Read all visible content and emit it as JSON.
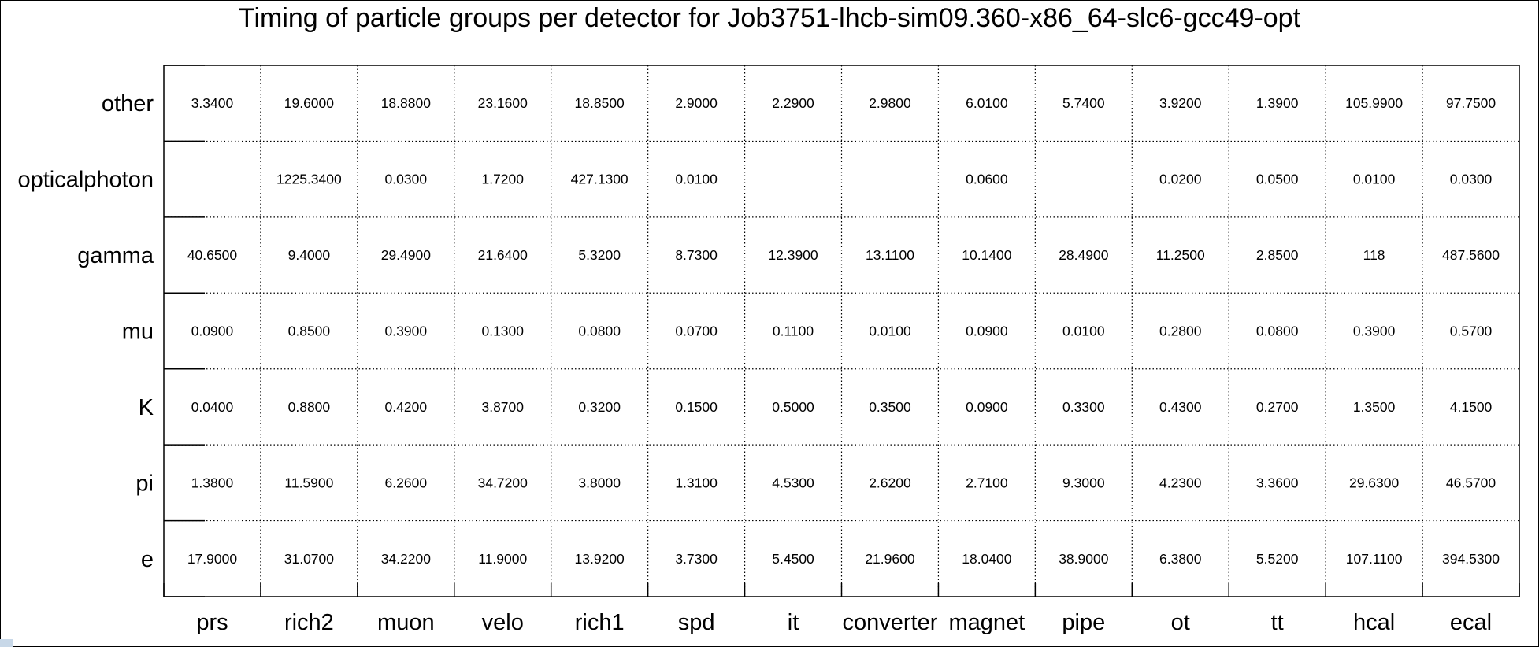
{
  "chart_data": {
    "type": "table",
    "title": "Timing of particle groups per detector for Job3751-lhcb-sim09.360-x86_64-slc6-gcc49-opt",
    "columns": [
      "prs",
      "rich2",
      "muon",
      "velo",
      "rich1",
      "spd",
      "it",
      "converter",
      "magnet",
      "pipe",
      "ot",
      "tt",
      "hcal",
      "ecal"
    ],
    "rows": [
      "other",
      "opticalphoton",
      "gamma",
      "mu",
      "K",
      "pi",
      "e"
    ],
    "cells": [
      [
        "3.3400",
        "19.6000",
        "18.8800",
        "23.1600",
        "18.8500",
        "2.9000",
        "2.2900",
        "2.9800",
        "6.0100",
        "5.7400",
        "3.9200",
        "1.3900",
        "105.9900",
        "97.7500"
      ],
      [
        "",
        "1225.3400",
        "0.0300",
        "1.7200",
        "427.1300",
        "0.0100",
        "",
        "",
        "0.0600",
        "",
        "0.0200",
        "0.0500",
        "0.0100",
        "0.0300"
      ],
      [
        "40.6500",
        "9.4000",
        "29.4900",
        "21.6400",
        "5.3200",
        "8.7300",
        "12.3900",
        "13.1100",
        "10.1400",
        "28.4900",
        "11.2500",
        "2.8500",
        "118",
        "487.5600"
      ],
      [
        "0.0900",
        "0.8500",
        "0.3900",
        "0.1300",
        "0.0800",
        "0.0700",
        "0.1100",
        "0.0100",
        "0.0900",
        "0.0100",
        "0.2800",
        "0.0800",
        "0.3900",
        "0.5700"
      ],
      [
        "0.0400",
        "0.8800",
        "0.4200",
        "3.8700",
        "0.3200",
        "0.1500",
        "0.5000",
        "0.3500",
        "0.0900",
        "0.3300",
        "0.4300",
        "0.2700",
        "1.3500",
        "4.1500"
      ],
      [
        "1.3800",
        "11.5900",
        "6.2600",
        "34.7200",
        "3.8000",
        "1.3100",
        "4.5300",
        "2.6200",
        "2.7100",
        "9.3000",
        "4.2300",
        "3.3600",
        "29.6300",
        "46.5700"
      ],
      [
        "17.9000",
        "31.0700",
        "34.2200",
        "11.9000",
        "13.9200",
        "3.7300",
        "5.4500",
        "21.9600",
        "18.0400",
        "38.9000",
        "6.3800",
        "5.5200",
        "107.1100",
        "394.5300"
      ]
    ],
    "grid": true,
    "grid_style": "dotted",
    "colors": {
      "line": "#000000",
      "text": "#000000",
      "background": "#ffffff"
    }
  }
}
